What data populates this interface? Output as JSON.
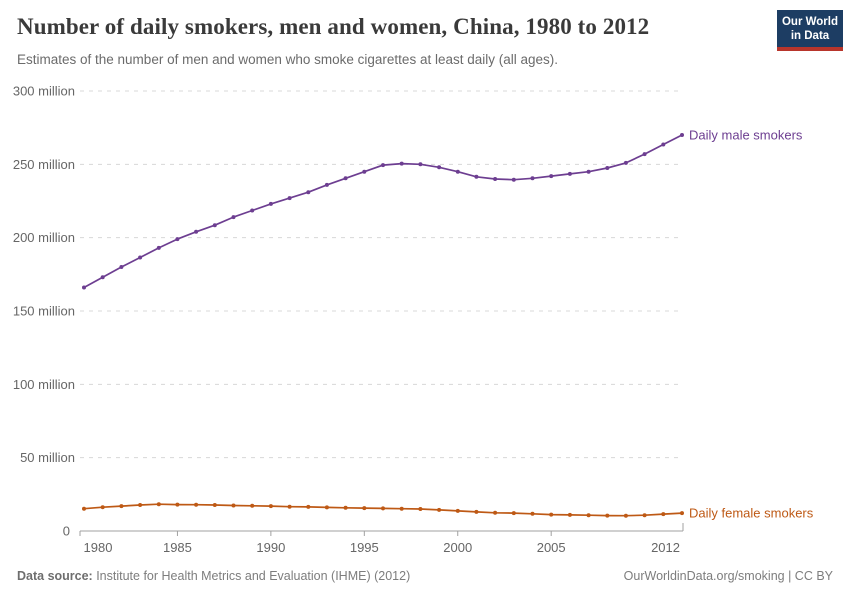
{
  "header": {
    "title": "Number of daily smokers, men and women, China, 1980 to 2012",
    "subtitle": "Estimates of the number of men and women who smoke cigarettes at least daily (all ages).",
    "logo": {
      "line1": "Our World",
      "line2": "in Data",
      "bg_color": "#1d3d63",
      "stripe_color": "#b8352b"
    }
  },
  "chart_data": {
    "type": "line",
    "title": "Number of daily smokers, men and women, China, 1980 to 2012",
    "unit": "million",
    "x": [
      1980,
      1981,
      1982,
      1983,
      1984,
      1985,
      1986,
      1987,
      1988,
      1989,
      1990,
      1991,
      1992,
      1993,
      1994,
      1995,
      1996,
      1997,
      1998,
      1999,
      2000,
      2001,
      2002,
      2003,
      2004,
      2005,
      2006,
      2007,
      2008,
      2009,
      2010,
      2011,
      2012
    ],
    "series": [
      {
        "name": "Daily male smokers",
        "color": "#6d3e91",
        "values": [
          166,
          173,
          180,
          186.5,
          193,
          199,
          204,
          208.5,
          214,
          218.5,
          223,
          227,
          231,
          236,
          240.5,
          245,
          249.5,
          250.5,
          250,
          248,
          245,
          241.5,
          240,
          239.5,
          240.5,
          242,
          243.5,
          245,
          247.5,
          251,
          257,
          263.5,
          270
        ]
      },
      {
        "name": "Daily female smokers",
        "color": "#be5915",
        "values": [
          15.2,
          16.2,
          17,
          17.7,
          18.3,
          18,
          17.9,
          17.7,
          17.4,
          17.2,
          17,
          16.6,
          16.4,
          16.1,
          15.8,
          15.6,
          15.4,
          15.2,
          15,
          14.4,
          13.7,
          13,
          12.4,
          12.2,
          11.7,
          11.2,
          11,
          10.8,
          10.5,
          10.4,
          10.8,
          11.5,
          12.2
        ]
      }
    ],
    "xlim": [
      1980,
      2012
    ],
    "ylim": [
      0,
      300
    ],
    "xticks": [
      1980,
      1985,
      1990,
      1995,
      2000,
      2005,
      2012
    ],
    "yticks": [
      0,
      50,
      100,
      150,
      200,
      250,
      300
    ],
    "ytick_labels": [
      "0",
      "50 million",
      "100 million",
      "150 million",
      "200 million",
      "250 million",
      "300 million"
    ],
    "grid": "horizontal-dashed",
    "legend": "end-of-line-labels"
  },
  "footer": {
    "source_label": "Data source:",
    "source_text": " Institute for Health Metrics and Evaluation (IHME) (2012)",
    "credit": "OurWorldinData.org/smoking | CC BY"
  }
}
